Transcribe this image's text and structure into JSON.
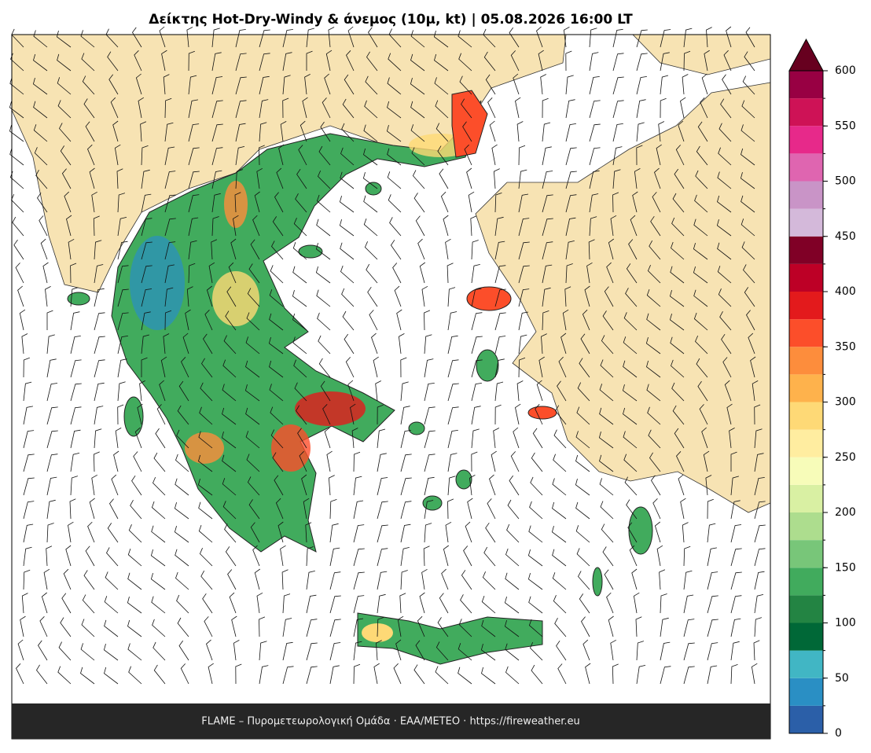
{
  "title": "Δείκτης Hot-Dry-Windy & άνεμος (10μ, kt)  |  05.08.2026 16:00 LT",
  "footer": "FLAME – Πυρομετεωρολογική Ομάδα · ΕΑΑ/METEO · https://fireweather.eu",
  "colorbar": {
    "bounds": [
      0,
      25,
      50,
      75,
      100,
      125,
      150,
      175,
      200,
      225,
      250,
      275,
      300,
      325,
      350,
      375,
      400,
      425,
      450,
      475,
      500,
      525,
      550,
      575,
      600
    ],
    "colors": [
      "#2b5fa8",
      "#2a8fc4",
      "#41b6c4",
      "#006837",
      "#238443",
      "#41ab5d",
      "#78c679",
      "#addd8e",
      "#d9f0a3",
      "#f7fcb9",
      "#ffeda0",
      "#fed976",
      "#feb24c",
      "#fd8d3c",
      "#fc4e2a",
      "#e31a1c",
      "#bd0026",
      "#800026",
      "#d4b9da",
      "#c994c7",
      "#df65b0",
      "#e7298a",
      "#ce1256",
      "#980043"
    ],
    "extend_color": "#67001f",
    "ticks": [
      0,
      50,
      100,
      150,
      200,
      250,
      300,
      350,
      400,
      450,
      500,
      550,
      600
    ]
  }
}
